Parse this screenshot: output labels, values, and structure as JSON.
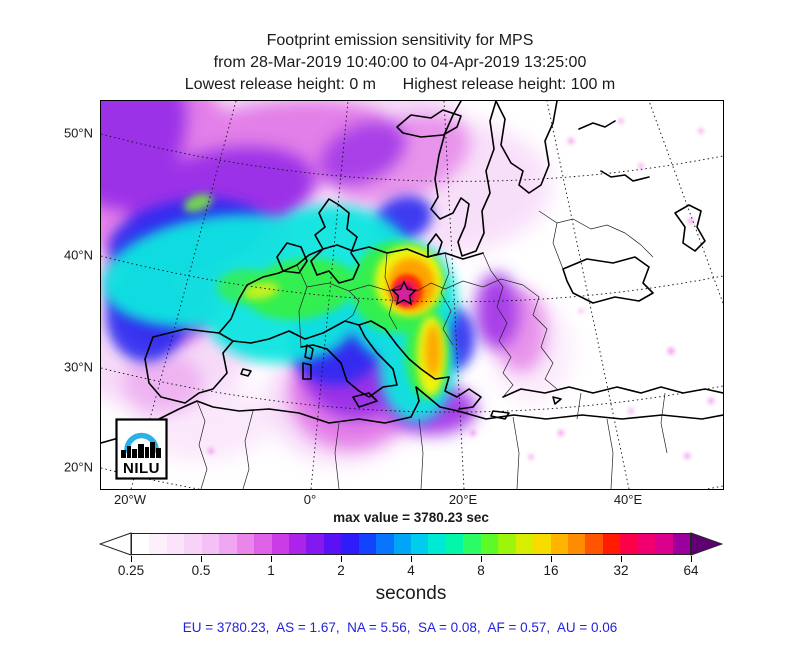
{
  "title": {
    "line1": "Footprint emission sensitivity for MPS",
    "line2": "from 28-Mar-2019 10:40:00 to 04-Apr-2019 13:25:00",
    "line3": "Lowest release height: 0 m      Highest release height: 100 m"
  },
  "map": {
    "lat_ticks": [
      "50°N",
      "40°N",
      "30°N",
      "20°N"
    ],
    "lon_ticks": [
      "20°W",
      "0°",
      "20°E",
      "40°E"
    ],
    "marker": "release-location-star",
    "logo_text": "NILU"
  },
  "max_value_label": "max value = 3780.23 sec",
  "colorbar": {
    "tick_labels": [
      "0.25",
      "0.5",
      "1",
      "2",
      "4",
      "8",
      "16",
      "32",
      "64"
    ],
    "units": "seconds",
    "left_arrow_color": "#ffffff",
    "right_arrow_color": "#5f0072",
    "colors": [
      "#ffffff",
      "#fdf0fd",
      "#fbe3fb",
      "#f8d3f8",
      "#f5c0f5",
      "#f1a6f1",
      "#ea86ea",
      "#de62e6",
      "#cb3be6",
      "#ac24e8",
      "#8518ee",
      "#5a12f4",
      "#2f1cfa",
      "#1343ff",
      "#0875ff",
      "#00a5f5",
      "#00cdee",
      "#00e9d4",
      "#04f6a8",
      "#2cfa66",
      "#5cfa28",
      "#9cf60c",
      "#d8ee00",
      "#f8dc00",
      "#ffb400",
      "#ff8c00",
      "#ff5400",
      "#ff1c00",
      "#fc0048",
      "#ef006e",
      "#d9008c",
      "#9c009c"
    ]
  },
  "footer": {
    "text": "EU = 3780.23,  AS = 1.67,  NA = 5.56,  SA = 0.08,  AF = 0.57,  AU = 0.06",
    "color": "#2222dd"
  },
  "colors": {
    "logo_arc_blue": "#2bb0e8",
    "text_black": "#1a1a1a"
  },
  "chart_data": {
    "type": "heatmap",
    "title": "Footprint emission sensitivity for MPS",
    "period": {
      "from": "28-Mar-2019 10:40:00",
      "to": "04-Apr-2019 13:25:00"
    },
    "release_height": {
      "lowest": "0 m",
      "highest": "100 m"
    },
    "receptor": "MPS",
    "max_value_sec": 3780.23,
    "units": "seconds",
    "colorbar_scale": {
      "type": "log2",
      "ticks": [
        0.25,
        0.5,
        1,
        2,
        4,
        8,
        16,
        32,
        64
      ],
      "open_ended": true
    },
    "region_totals": {
      "EU": 3780.23,
      "AS": 1.67,
      "NA": 5.56,
      "SA": 0.08,
      "AF": 0.57,
      "AU": 0.06
    },
    "map_axes": {
      "lat_tick_values_deg_n": [
        50,
        40,
        30,
        20
      ],
      "lon_tick_values_deg_e": [
        -20,
        0,
        20,
        40
      ],
      "graticule": "dotted",
      "projection": "polar-stereographic-like"
    },
    "legend_position": "bottom-colorbar",
    "notes": "Plume max (red/crimson core with star marker) over central Europe; cyan/green band extends west across UK and the Atlantic; secondary lobe south over Italy to North Africa; pale magenta field over NE Atlantic and Scandinavia."
  }
}
